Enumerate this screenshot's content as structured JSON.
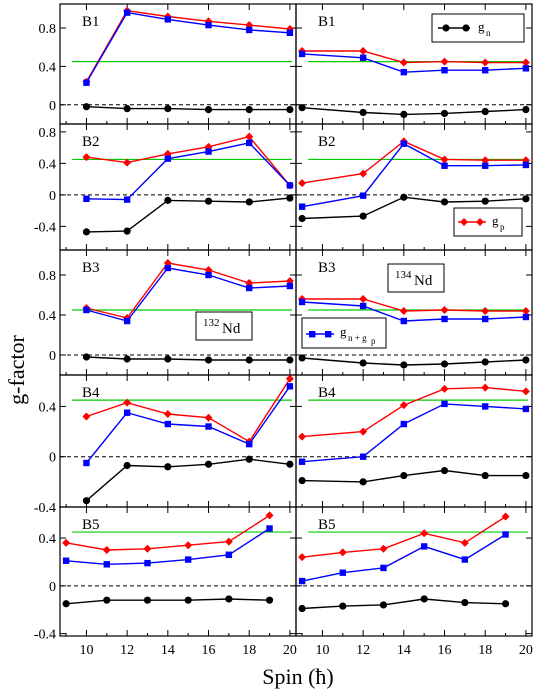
{
  "chart_data": {
    "type": "line",
    "ylabel": "g-factor",
    "xlabel": "Spin (ħ)",
    "xlim": [
      8.7,
      20.3
    ],
    "x_ticks": [
      10,
      12,
      14,
      16,
      18,
      20
    ],
    "x_tick_labels": [
      "10",
      "12",
      "14",
      "16",
      "18",
      "20"
    ],
    "grid": false,
    "reference_lines": {
      "green_level": 0.45,
      "dashed_zero": 0
    },
    "colors": {
      "g_n": "#000000",
      "g_p": "#ff0000",
      "g_np": "#0000ff",
      "reference": "#00cc00"
    },
    "legend_entries": [
      {
        "key": "g_n",
        "base": "g",
        "sub": "n"
      },
      {
        "key": "g_p",
        "base": "g",
        "sub": "p"
      },
      {
        "key": "g_np",
        "base": "g",
        "sub": "n + g",
        "subsub": "p"
      }
    ],
    "nucleus_labels": [
      {
        "mass": "132",
        "symbol": "Nd"
      },
      {
        "mass": "134",
        "symbol": "Nd"
      }
    ],
    "panels": [
      {
        "id": "B1_132",
        "band": "B1",
        "nucleus": "132Nd",
        "ylim": [
          -0.2,
          1.05
        ],
        "yticks": [
          0,
          0.4,
          0.8
        ],
        "ytick_labels": [
          "0",
          "0.4",
          "0.8"
        ],
        "series": [
          {
            "key": "g_n",
            "x": [
              10,
              12,
              14,
              16,
              18,
              20
            ],
            "y": [
              -0.02,
              -0.04,
              -0.04,
              -0.05,
              -0.05,
              -0.05
            ]
          },
          {
            "key": "g_p",
            "x": [
              10,
              12,
              14,
              16,
              18,
              20
            ],
            "y": [
              0.24,
              0.98,
              0.92,
              0.87,
              0.83,
              0.79
            ]
          },
          {
            "key": "g_np",
            "x": [
              10,
              12,
              14,
              16,
              18,
              20
            ],
            "y": [
              0.23,
              0.96,
              0.89,
              0.83,
              0.78,
              0.75
            ]
          }
        ]
      },
      {
        "id": "B1_134",
        "band": "B1",
        "nucleus": "134Nd",
        "ylim": [
          -0.2,
          1.05
        ],
        "yticks": [
          0,
          0.4,
          0.8
        ],
        "ytick_labels": [
          "",
          "",
          ""
        ],
        "series": [
          {
            "key": "g_n",
            "x": [
              9,
              12,
              14,
              16,
              18,
              20
            ],
            "y": [
              -0.03,
              -0.08,
              -0.1,
              -0.09,
              -0.07,
              -0.05
            ]
          },
          {
            "key": "g_p",
            "x": [
              9,
              12,
              14,
              16,
              18,
              20
            ],
            "y": [
              0.56,
              0.56,
              0.44,
              0.45,
              0.44,
              0.44
            ]
          },
          {
            "key": "g_np",
            "x": [
              9,
              12,
              14,
              16,
              18,
              20
            ],
            "y": [
              0.53,
              0.49,
              0.34,
              0.36,
              0.36,
              0.38
            ]
          }
        ]
      },
      {
        "id": "B2_132",
        "band": "B2",
        "nucleus": "132Nd",
        "ylim": [
          -0.7,
          0.9
        ],
        "yticks": [
          -0.4,
          0,
          0.4,
          0.8
        ],
        "ytick_labels": [
          "-0.4",
          "0",
          "0.4",
          "0.8"
        ],
        "series": [
          {
            "key": "g_n",
            "x": [
              10,
              12,
              14,
              16,
              18,
              20
            ],
            "y": [
              -0.47,
              -0.46,
              -0.07,
              -0.08,
              -0.09,
              -0.04
            ]
          },
          {
            "key": "g_p",
            "x": [
              10,
              12,
              14,
              16,
              18,
              20
            ],
            "y": [
              0.48,
              0.41,
              0.52,
              0.61,
              0.74,
              0.12
            ]
          },
          {
            "key": "g_np",
            "x": [
              10,
              12,
              14,
              16,
              18,
              20
            ],
            "y": [
              -0.05,
              -0.06,
              0.46,
              0.55,
              0.66,
              0.12
            ]
          }
        ]
      },
      {
        "id": "B2_134",
        "band": "B2",
        "nucleus": "134Nd",
        "ylim": [
          -0.7,
          0.9
        ],
        "yticks": [
          -0.4,
          0,
          0.4,
          0.8
        ],
        "ytick_labels": [
          "",
          "",
          "",
          ""
        ],
        "series": [
          {
            "key": "g_n",
            "x": [
              9,
              12,
              14,
              16,
              18,
              20
            ],
            "y": [
              -0.3,
              -0.27,
              -0.03,
              -0.09,
              -0.08,
              -0.05
            ]
          },
          {
            "key": "g_p",
            "x": [
              9,
              12,
              14,
              16,
              18,
              20
            ],
            "y": [
              0.15,
              0.27,
              0.68,
              0.45,
              0.44,
              0.44
            ]
          },
          {
            "key": "g_np",
            "x": [
              9,
              12,
              14,
              16,
              18,
              20
            ],
            "y": [
              -0.15,
              -0.01,
              0.65,
              0.37,
              0.37,
              0.38
            ]
          }
        ]
      },
      {
        "id": "B3_132",
        "band": "B3",
        "nucleus": "132Nd",
        "ylim": [
          -0.2,
          1.05
        ],
        "yticks": [
          0,
          0.4,
          0.8
        ],
        "ytick_labels": [
          "0",
          "0.4",
          "0.8"
        ],
        "series": [
          {
            "key": "g_n",
            "x": [
              10,
              12,
              14,
              16,
              18,
              20
            ],
            "y": [
              -0.02,
              -0.04,
              -0.04,
              -0.05,
              -0.05,
              -0.05
            ]
          },
          {
            "key": "g_p",
            "x": [
              10,
              12,
              14,
              16,
              18,
              20
            ],
            "y": [
              0.47,
              0.37,
              0.92,
              0.85,
              0.72,
              0.74
            ]
          },
          {
            "key": "g_np",
            "x": [
              10,
              12,
              14,
              16,
              18,
              20
            ],
            "y": [
              0.45,
              0.34,
              0.87,
              0.8,
              0.67,
              0.69
            ]
          }
        ]
      },
      {
        "id": "B3_134",
        "band": "B3",
        "nucleus": "134Nd",
        "ylim": [
          -0.2,
          1.05
        ],
        "yticks": [
          0,
          0.4,
          0.8
        ],
        "ytick_labels": [
          "",
          "",
          ""
        ],
        "series": [
          {
            "key": "g_n",
            "x": [
              9,
              12,
              14,
              16,
              18,
              20
            ],
            "y": [
              -0.03,
              -0.08,
              -0.1,
              -0.09,
              -0.07,
              -0.05
            ]
          },
          {
            "key": "g_p",
            "x": [
              9,
              12,
              14,
              16,
              18,
              20
            ],
            "y": [
              0.56,
              0.56,
              0.44,
              0.45,
              0.44,
              0.44
            ]
          },
          {
            "key": "g_np",
            "x": [
              9,
              12,
              14,
              16,
              18,
              20
            ],
            "y": [
              0.53,
              0.49,
              0.34,
              0.36,
              0.36,
              0.38
            ]
          }
        ]
      },
      {
        "id": "B4_132",
        "band": "B4",
        "nucleus": "132Nd",
        "ylim": [
          -0.4,
          0.65
        ],
        "yticks": [
          -0.4,
          0,
          0.4
        ],
        "ytick_labels": [
          "-0.4",
          "0",
          "0.4"
        ],
        "series": [
          {
            "key": "g_n",
            "x": [
              10,
              12,
              14,
              16,
              18,
              20
            ],
            "y": [
              -0.35,
              -0.07,
              -0.08,
              -0.06,
              -0.02,
              -0.06
            ]
          },
          {
            "key": "g_p",
            "x": [
              10,
              12,
              14,
              16,
              18,
              20
            ],
            "y": [
              0.32,
              0.43,
              0.34,
              0.31,
              0.12,
              0.62
            ]
          },
          {
            "key": "g_np",
            "x": [
              10,
              12,
              14,
              16,
              18,
              20
            ],
            "y": [
              -0.05,
              0.35,
              0.26,
              0.24,
              0.1,
              0.56
            ]
          }
        ]
      },
      {
        "id": "B4_134",
        "band": "B4",
        "nucleus": "134Nd",
        "ylim": [
          -0.4,
          0.65
        ],
        "yticks": [
          -0.4,
          0,
          0.4
        ],
        "ytick_labels": [
          "",
          "",
          ""
        ],
        "series": [
          {
            "key": "g_n",
            "x": [
              9,
              12,
              14,
              16,
              18,
              20
            ],
            "y": [
              -0.19,
              -0.2,
              -0.15,
              -0.11,
              -0.15,
              -0.15
            ]
          },
          {
            "key": "g_p",
            "x": [
              9,
              12,
              14,
              16,
              18,
              20
            ],
            "y": [
              0.16,
              0.2,
              0.41,
              0.54,
              0.55,
              0.52
            ]
          },
          {
            "key": "g_np",
            "x": [
              9,
              12,
              14,
              16,
              18,
              20
            ],
            "y": [
              -0.04,
              0.0,
              0.26,
              0.42,
              0.4,
              0.38
            ]
          }
        ]
      },
      {
        "id": "B5_132",
        "band": "B5",
        "nucleus": "132Nd",
        "ylim": [
          -0.42,
          0.66
        ],
        "yticks": [
          -0.4,
          0,
          0.4
        ],
        "ytick_labels": [
          "-0.4",
          "0",
          "0.4"
        ],
        "series": [
          {
            "key": "g_n",
            "x": [
              9,
              11,
              13,
              15,
              17,
              19
            ],
            "y": [
              -0.15,
              -0.12,
              -0.12,
              -0.12,
              -0.11,
              -0.12
            ]
          },
          {
            "key": "g_p",
            "x": [
              9,
              11,
              13,
              15,
              17,
              19
            ],
            "y": [
              0.36,
              0.3,
              0.31,
              0.34,
              0.37,
              0.59
            ]
          },
          {
            "key": "g_np",
            "x": [
              9,
              11,
              13,
              15,
              17,
              19
            ],
            "y": [
              0.21,
              0.18,
              0.19,
              0.22,
              0.26,
              0.48
            ]
          }
        ]
      },
      {
        "id": "B5_134",
        "band": "B5",
        "nucleus": "134Nd",
        "ylim": [
          -0.42,
          0.66
        ],
        "yticks": [
          -0.4,
          0,
          0.4
        ],
        "ytick_labels": [
          "",
          "",
          ""
        ],
        "series": [
          {
            "key": "g_n",
            "x": [
              9,
              11,
              13,
              15,
              17,
              19
            ],
            "y": [
              -0.19,
              -0.17,
              -0.16,
              -0.11,
              -0.14,
              -0.15
            ]
          },
          {
            "key": "g_p",
            "x": [
              9,
              11,
              13,
              15,
              17,
              19
            ],
            "y": [
              0.24,
              0.28,
              0.31,
              0.44,
              0.36,
              0.58
            ]
          },
          {
            "key": "g_np",
            "x": [
              9,
              11,
              13,
              15,
              17,
              19
            ],
            "y": [
              0.04,
              0.11,
              0.15,
              0.33,
              0.22,
              0.43
            ]
          }
        ]
      }
    ]
  }
}
